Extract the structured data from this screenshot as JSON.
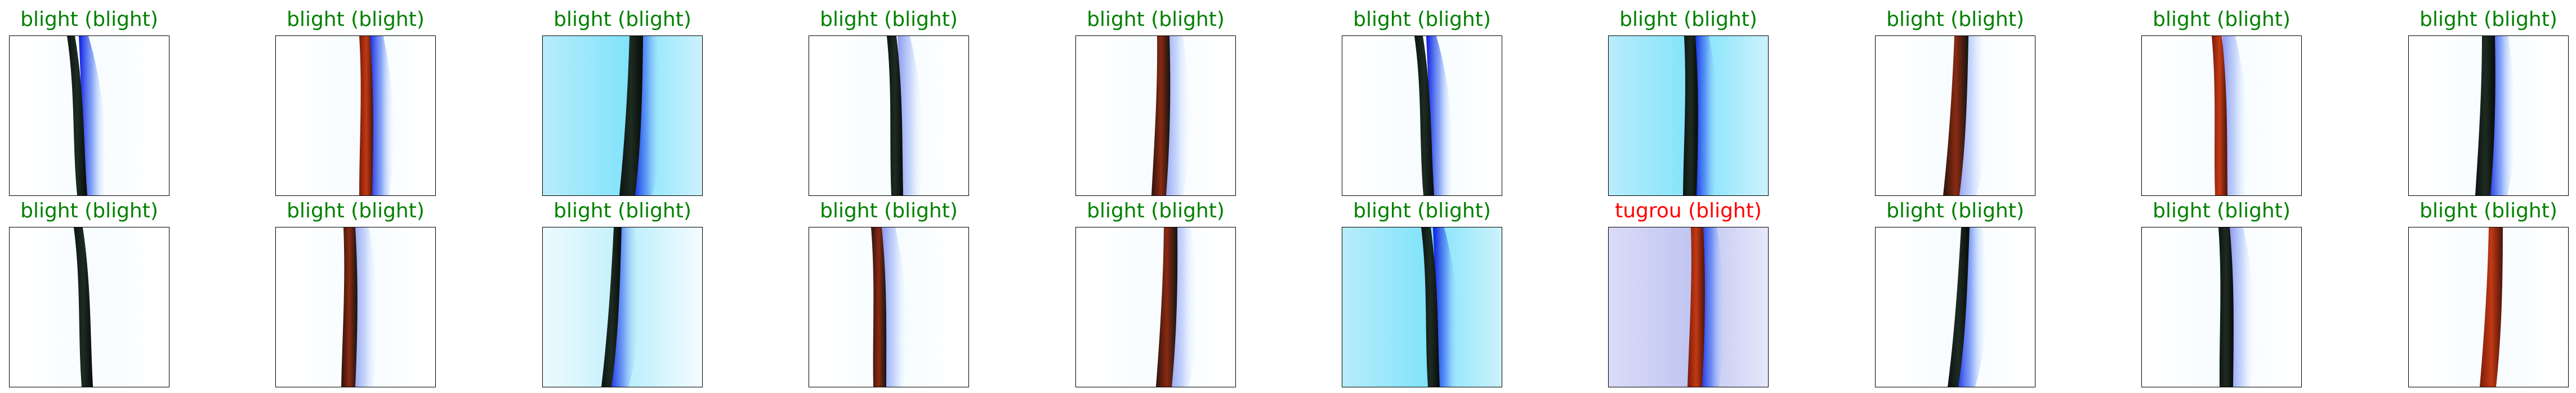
{
  "grid": {
    "rows": 2,
    "cols": 10
  },
  "colors": {
    "correct": "#008000",
    "wrong": "#ff0000"
  },
  "panels": [
    {
      "title": "blight (blight)",
      "correct": true,
      "bg": "white",
      "leaf": "dark",
      "blue": "strong"
    },
    {
      "title": "blight (blight)",
      "correct": true,
      "bg": "white",
      "leaf": "red",
      "blue": "strong"
    },
    {
      "title": "blight (blight)",
      "correct": true,
      "bg": "cyan",
      "leaf": "dark",
      "blue": "strong"
    },
    {
      "title": "blight (blight)",
      "correct": true,
      "bg": "white",
      "leaf": "dark",
      "blue": "light"
    },
    {
      "title": "blight (blight)",
      "correct": true,
      "bg": "white",
      "leaf": "reddark",
      "blue": "light"
    },
    {
      "title": "blight (blight)",
      "correct": true,
      "bg": "white",
      "leaf": "dark",
      "blue": "strong"
    },
    {
      "title": "blight (blight)",
      "correct": true,
      "bg": "cyan",
      "leaf": "dark",
      "blue": "strong"
    },
    {
      "title": "blight (blight)",
      "correct": true,
      "bg": "white",
      "leaf": "reddark",
      "blue": "light"
    },
    {
      "title": "blight (blight)",
      "correct": true,
      "bg": "white",
      "leaf": "red",
      "blue": "light"
    },
    {
      "title": "blight (blight)",
      "correct": true,
      "bg": "white",
      "leaf": "dark",
      "blue": "strong"
    },
    {
      "title": "blight (blight)",
      "correct": true,
      "bg": "white",
      "leaf": "dark",
      "blue": "none"
    },
    {
      "title": "blight (blight)",
      "correct": true,
      "bg": "white",
      "leaf": "reddark",
      "blue": "light"
    },
    {
      "title": "blight (blight)",
      "correct": true,
      "bg": "lightcyan",
      "leaf": "dark",
      "blue": "strong"
    },
    {
      "title": "blight (blight)",
      "correct": true,
      "bg": "white",
      "leaf": "reddark",
      "blue": "light"
    },
    {
      "title": "blight (blight)",
      "correct": true,
      "bg": "white",
      "leaf": "reddark",
      "blue": "light"
    },
    {
      "title": "blight (blight)",
      "correct": true,
      "bg": "cyan",
      "leaf": "dark",
      "blue": "strong"
    },
    {
      "title": "tugrou (blight)",
      "correct": false,
      "bg": "lavender",
      "leaf": "red",
      "blue": "strong"
    },
    {
      "title": "blight (blight)",
      "correct": true,
      "bg": "white",
      "leaf": "dark",
      "blue": "strong"
    },
    {
      "title": "blight (blight)",
      "correct": true,
      "bg": "white",
      "leaf": "dark",
      "blue": "light"
    },
    {
      "title": "blight (blight)",
      "correct": true,
      "bg": "white",
      "leaf": "red",
      "blue": "none"
    }
  ]
}
